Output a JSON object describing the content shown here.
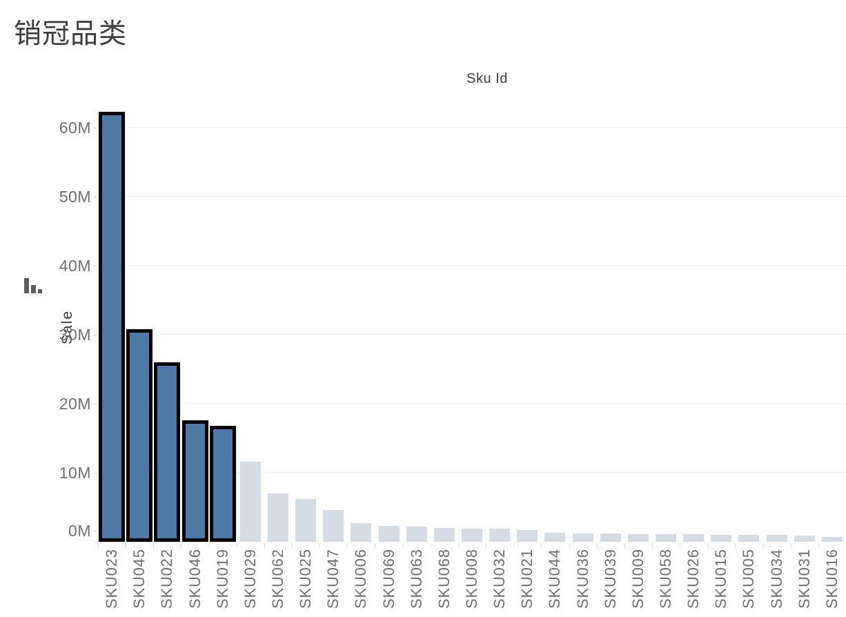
{
  "title": "销冠品类",
  "chart": {
    "x_axis_title": "Sku Id",
    "y_axis_title": "Sale",
    "sort_icon": "sort-descending-bars"
  },
  "colors": {
    "title_text": "#3f3f3f",
    "axis_title_text": "#3c3c3c",
    "tick_text": "#707070",
    "bar_highlight": "#4e79a7",
    "bar_highlight_border": "#000000",
    "bar_dim": "#d6dce4",
    "gridline": "#f0f0f0",
    "sort_icon": "#5f5f5f"
  },
  "chart_data": {
    "type": "bar",
    "title": "销冠品类",
    "xlabel": "Sku Id",
    "ylabel": "Sale",
    "unit": "M",
    "sorted": "descending",
    "grid": "horizontal",
    "legend": "none",
    "ylim": [
      0,
      65
    ],
    "y_ticks": [
      "0M",
      "10M",
      "20M",
      "30M",
      "40M",
      "50M",
      "60M"
    ],
    "categories": [
      "SKU023",
      "SKU045",
      "SKU022",
      "SKU046",
      "SKU019",
      "SKU029",
      "SKU062",
      "SKU025",
      "SKU047",
      "SKU006",
      "SKU069",
      "SKU063",
      "SKU068",
      "SKU008",
      "SKU032",
      "SKU021",
      "SKU044",
      "SKU036",
      "SKU039",
      "SKU009",
      "SKU058",
      "SKU026",
      "SKU015",
      "SKU005",
      "SKU034",
      "SKU031",
      "SKU016"
    ],
    "values": [
      62.3,
      30.8,
      26.0,
      17.6,
      16.8,
      11.6,
      7.0,
      6.2,
      4.6,
      2.7,
      2.3,
      2.2,
      2.0,
      1.9,
      1.9,
      1.7,
      1.3,
      1.2,
      1.2,
      1.1,
      1.1,
      1.1,
      1.05,
      1.0,
      1.0,
      0.95,
      0.75
    ],
    "highlighted_categories": [
      "SKU023",
      "SKU045",
      "SKU022",
      "SKU046",
      "SKU019"
    ]
  }
}
